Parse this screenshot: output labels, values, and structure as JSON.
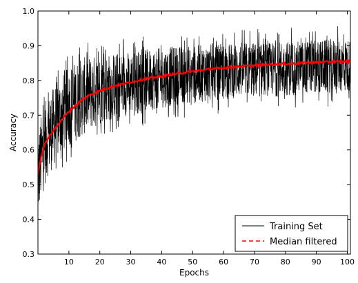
{
  "chart_data": {
    "type": "line",
    "title": "",
    "xlabel": "Epochs",
    "ylabel": "Accuracy",
    "xlim": [
      0,
      101
    ],
    "ylim": [
      0.3,
      1.0
    ],
    "x_ticks": [
      10,
      20,
      30,
      40,
      50,
      60,
      70,
      80,
      90,
      100
    ],
    "x_tick_labels": [
      "10",
      "20",
      "30",
      "40",
      "50",
      "60",
      "70",
      "80",
      "90",
      "100"
    ],
    "y_ticks": [
      0.3,
      0.4,
      0.5,
      0.6,
      0.7,
      0.8,
      0.9,
      1.0
    ],
    "y_tick_labels": [
      "0.3",
      "0.4",
      "0.5",
      "0.6",
      "0.7",
      "0.8",
      "0.9",
      "1.0"
    ],
    "grid": false,
    "legend": {
      "placement": "bottom-right",
      "entries": [
        "Training Set",
        "Median filtered"
      ]
    },
    "series": [
      {
        "name": "Median filtered",
        "style": "dashed",
        "color": "#ff0000",
        "x": [
          0,
          1,
          2,
          3,
          5,
          7,
          10,
          13,
          16,
          20,
          25,
          30,
          35,
          40,
          45,
          50,
          55,
          60,
          65,
          70,
          75,
          80,
          85,
          90,
          95,
          101
        ],
        "y": [
          0.53,
          0.58,
          0.61,
          0.63,
          0.655,
          0.68,
          0.71,
          0.735,
          0.755,
          0.77,
          0.785,
          0.795,
          0.805,
          0.812,
          0.82,
          0.826,
          0.832,
          0.836,
          0.84,
          0.843,
          0.846,
          0.848,
          0.85,
          0.852,
          0.854,
          0.855
        ]
      },
      {
        "name": "Training Set",
        "style": "solid",
        "color": "#000000",
        "x": [
          0,
          1,
          2,
          3,
          5,
          7,
          10,
          13,
          16,
          20,
          25,
          30,
          35,
          40,
          45,
          50,
          55,
          60,
          65,
          70,
          75,
          80,
          85,
          90,
          95,
          101
        ],
        "y_upper": [
          0.65,
          0.7,
          0.73,
          0.75,
          0.78,
          0.81,
          0.84,
          0.86,
          0.87,
          0.875,
          0.88,
          0.885,
          0.89,
          0.895,
          0.9,
          0.9,
          0.905,
          0.905,
          0.91,
          0.91,
          0.91,
          0.915,
          0.915,
          0.915,
          0.92,
          0.92
        ],
        "y_lower": [
          0.4,
          0.45,
          0.49,
          0.52,
          0.55,
          0.58,
          0.61,
          0.63,
          0.65,
          0.67,
          0.69,
          0.7,
          0.71,
          0.72,
          0.73,
          0.735,
          0.74,
          0.745,
          0.75,
          0.75,
          0.755,
          0.755,
          0.76,
          0.76,
          0.765,
          0.765
        ],
        "y_max_spikes": [
          0.7,
          0.78,
          0.81,
          0.84,
          0.86,
          0.88,
          0.9,
          0.91,
          0.92,
          0.93,
          0.93,
          0.94,
          0.94,
          0.95,
          0.95,
          0.96,
          0.96,
          0.96,
          0.97,
          0.97
        ],
        "y_min_spikes": [
          0.37,
          0.41,
          0.46,
          0.5,
          0.54,
          0.57,
          0.6,
          0.62,
          0.64,
          0.66,
          0.67,
          0.68,
          0.69,
          0.7,
          0.7,
          0.71,
          0.72,
          0.72,
          0.73,
          0.73
        ]
      }
    ]
  }
}
